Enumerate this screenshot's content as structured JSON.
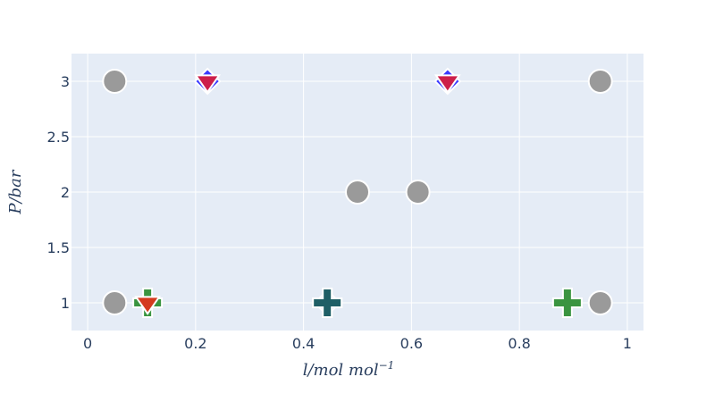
{
  "chart_data": {
    "type": "scatter",
    "xlabel": "l/mol mol",
    "xlabel_sup": "−1",
    "ylabel": "P/bar",
    "xlim": [
      -0.03,
      1.03
    ],
    "ylim": [
      0.75,
      3.25
    ],
    "x_ticks": [
      0,
      0.2,
      0.4,
      0.6,
      0.8,
      1
    ],
    "x_tick_labels": [
      "0",
      "0.2",
      "0.4",
      "0.6",
      "0.8",
      "1"
    ],
    "y_ticks": [
      1,
      1.5,
      2,
      2.5,
      3
    ],
    "y_tick_labels": [
      "1",
      "1.5",
      "2",
      "2.5",
      "3"
    ],
    "grid": true,
    "background": "#e5ecf6",
    "series": [
      {
        "marker": "circle",
        "color": "#9a9a9a",
        "x": [
          0.05,
          0.05,
          0.5,
          0.612,
          0.95,
          0.95
        ],
        "y": [
          3,
          1,
          2,
          2,
          3,
          1
        ]
      },
      {
        "marker": "diamond",
        "color": "#3b3bff",
        "x": [
          0.222,
          0.667,
          0.444
        ],
        "y": [
          3,
          3,
          1
        ]
      },
      {
        "marker": "triangle-down",
        "color": "#cc1f4a",
        "x": [
          0.222,
          0.667
        ],
        "y": [
          3,
          3
        ]
      },
      {
        "marker": "cross",
        "color": "#3a9440",
        "x": [
          0.111,
          0.444,
          0.889
        ],
        "y": [
          1,
          1,
          1
        ]
      },
      {
        "marker": "cross",
        "color": "#1f5f66",
        "x": [
          0.444
        ],
        "y": [
          1
        ]
      },
      {
        "marker": "triangle-down",
        "color": "#d43a1f",
        "x": [
          0.111
        ],
        "y": [
          1
        ]
      }
    ]
  }
}
